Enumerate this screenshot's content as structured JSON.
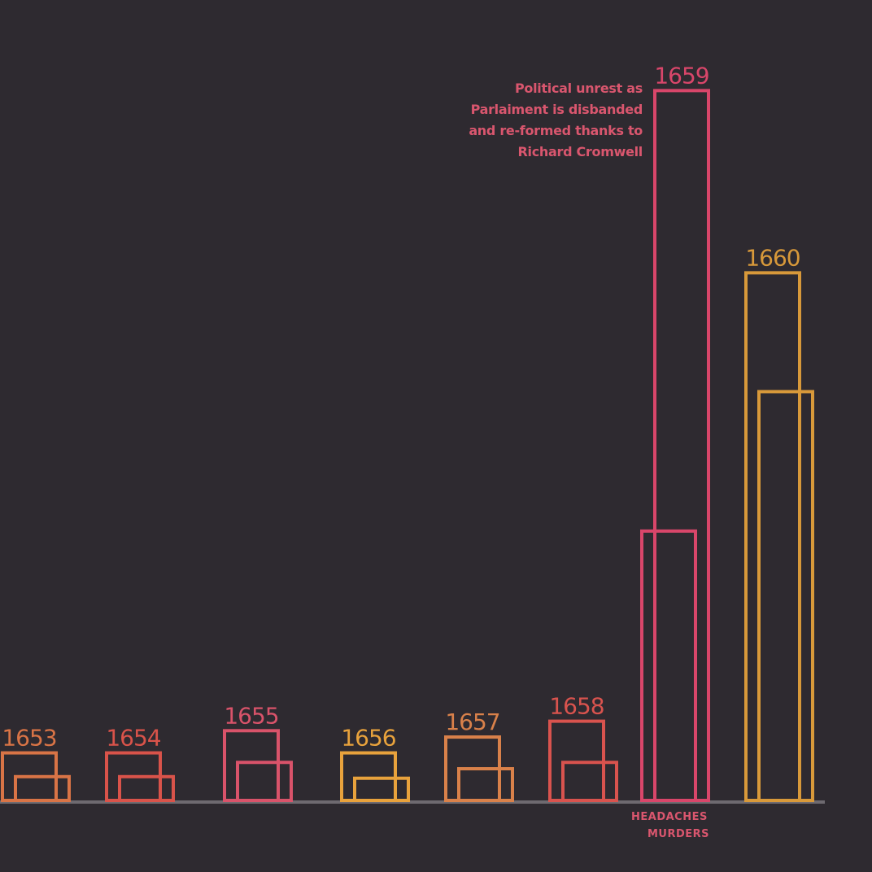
{
  "chart_data": {
    "type": "bar",
    "categories": [
      "1653",
      "1654",
      "1655",
      "1656",
      "1657",
      "1658",
      "1659",
      "1660"
    ],
    "colors": [
      "#d97446",
      "#d9534a",
      "#d9536a",
      "#e8a23c",
      "#d9814a",
      "#d9534e",
      "#d9466a",
      "#d8993a"
    ],
    "series": [
      {
        "name": "HEADACHES",
        "values": [
          30,
          30,
          44,
          30,
          40,
          50,
          448,
          333
        ]
      },
      {
        "name": "MURDERS",
        "values": [
          15,
          15,
          24,
          14,
          20,
          24,
          170,
          258
        ]
      }
    ],
    "ylim": [
      0,
      460
    ],
    "annotation": {
      "lines": [
        "Political unrest as",
        "Parlaiment is disbanded",
        "and re-formed thanks to",
        "Richard Cromwell"
      ]
    }
  }
}
